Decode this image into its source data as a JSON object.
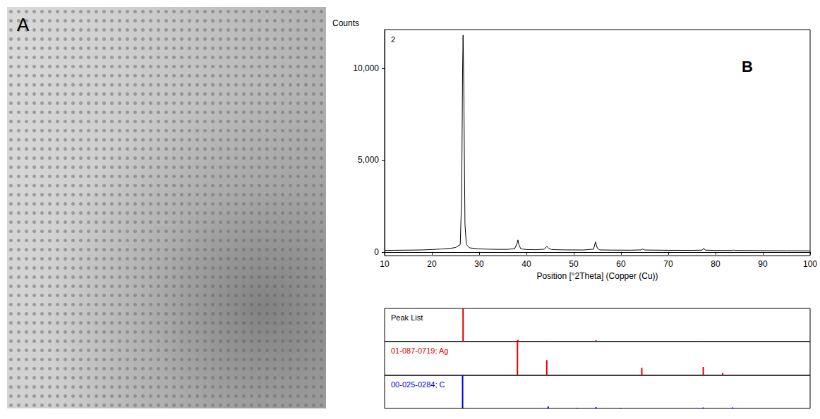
{
  "panel_a": {
    "label": "A"
  },
  "chart_data": [
    {
      "type": "line",
      "panel_label": "B",
      "annotation": "2",
      "y_label": "Counts",
      "x_label": "Position [°2Theta] (Copper (Cu))",
      "color": "#000000",
      "x": [
        10,
        12,
        14,
        16,
        18,
        20,
        22,
        24,
        25,
        26,
        26.3,
        26.5,
        26.6,
        26.75,
        27,
        27.3,
        28,
        30,
        32,
        34,
        36,
        37.5,
        38.0,
        38.2,
        38.4,
        38.8,
        40,
        42,
        43.8,
        44.3,
        44.7,
        45.3,
        48,
        50,
        52,
        54.2,
        54.6,
        55.0,
        55.5,
        58,
        62,
        64.2,
        64.6,
        65.0,
        70,
        75,
        77.2,
        77.5,
        77.8,
        80,
        83.5,
        83.8,
        84.1,
        90,
        95,
        100
      ],
      "values": [
        80,
        90,
        95,
        100,
        110,
        130,
        160,
        200,
        240,
        400,
        3000,
        10000,
        11800,
        9000,
        1500,
        400,
        220,
        170,
        150,
        140,
        140,
        180,
        450,
        650,
        400,
        170,
        130,
        120,
        150,
        300,
        200,
        130,
        110,
        110,
        105,
        150,
        550,
        200,
        110,
        100,
        95,
        110,
        160,
        105,
        90,
        85,
        100,
        200,
        100,
        80,
        80,
        100,
        80,
        70,
        65,
        60
      ],
      "xlim": [
        10,
        100
      ],
      "xticks": [
        10,
        20,
        30,
        40,
        50,
        60,
        70,
        80,
        90,
        100
      ],
      "ylim": [
        -200,
        12100
      ],
      "yticks": [
        0,
        5000,
        10000
      ],
      "grid": false
    },
    {
      "type": "bar",
      "title": "Peak List",
      "series": [
        {
          "color": "#e00000",
          "x": [
            26.6,
            38.2,
            44.4,
            54.7,
            64.6,
            77.5,
            83.7
          ],
          "values": [
            100,
            5,
            2,
            4,
            1,
            2,
            1
          ]
        }
      ],
      "xlim": [
        10,
        100
      ],
      "ylim": [
        0,
        100
      ],
      "tick_labels": false,
      "grid": false
    },
    {
      "type": "bar",
      "series": [
        {
          "name": "01-087-0719; Ag",
          "color": "#e00000",
          "x": [
            38.1,
            44.3,
            64.4,
            77.4,
            81.5
          ],
          "values": [
            100,
            45,
            22,
            25,
            7
          ]
        }
      ],
      "xlim": [
        10,
        100
      ],
      "ylim": [
        0,
        100
      ],
      "tick_labels": false,
      "grid": false
    },
    {
      "type": "bar",
      "series": [
        {
          "name": "00-025-0284; C",
          "color": "#0000e0",
          "x": [
            26.5,
            44.6,
            50.7,
            54.7,
            59.9,
            77.4,
            83.6
          ],
          "values": [
            100,
            6,
            2,
            4,
            2,
            3,
            3
          ]
        }
      ],
      "xlim": [
        10,
        100
      ],
      "ylim": [
        0,
        100
      ],
      "tick_labels": false,
      "grid": false
    }
  ]
}
